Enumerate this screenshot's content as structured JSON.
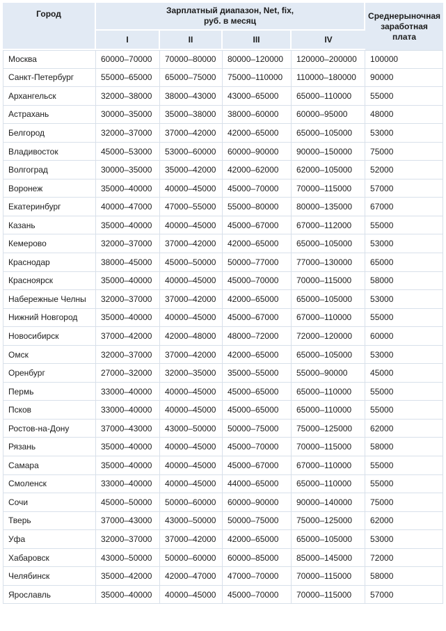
{
  "colors": {
    "header_bg": "#e2eaf4",
    "header_border": "#ffffff",
    "grid_line": "#d8e0ea",
    "text": "#1c1c1c",
    "page_bg": "#ffffff"
  },
  "table": {
    "header": {
      "city_label": "Город",
      "range_group_line1": "Зарплатный диапазон, Net, fix,",
      "range_group_line2": "руб. в месяц",
      "quartiles": [
        "I",
        "II",
        "III",
        "IV"
      ],
      "avg_label": "Среднерыночная заработная плата"
    },
    "rows": [
      {
        "city": "Москва",
        "ranges": [
          "60000–70000",
          "70000–80000",
          "80000–120000",
          "120000–200000"
        ],
        "avg": "100000"
      },
      {
        "city": "Санкт-Петербург",
        "ranges": [
          "55000–65000",
          "65000–75000",
          "75000–110000",
          "110000–180000"
        ],
        "avg": "90000"
      },
      {
        "city": "Архангельск",
        "ranges": [
          "32000–38000",
          "38000–43000",
          "43000–65000",
          "65000–110000"
        ],
        "avg": "55000"
      },
      {
        "city": "Астрахань",
        "ranges": [
          "30000–35000",
          "35000–38000",
          "38000–60000",
          "60000–95000"
        ],
        "avg": "48000"
      },
      {
        "city": "Белгород",
        "ranges": [
          "32000–37000",
          "37000–42000",
          "42000–65000",
          "65000–105000"
        ],
        "avg": "53000"
      },
      {
        "city": "Владивосток",
        "ranges": [
          "45000–53000",
          "53000–60000",
          "60000–90000",
          "90000–150000"
        ],
        "avg": "75000"
      },
      {
        "city": "Волгоград",
        "ranges": [
          "30000–35000",
          "35000–42000",
          "42000–62000",
          "62000–105000"
        ],
        "avg": "52000"
      },
      {
        "city": "Воронеж",
        "ranges": [
          "35000–40000",
          "40000–45000",
          "45000–70000",
          "70000–115000"
        ],
        "avg": "57000"
      },
      {
        "city": "Екатеринбург",
        "ranges": [
          "40000–47000",
          "47000–55000",
          "55000–80000",
          "80000–135000"
        ],
        "avg": "67000"
      },
      {
        "city": "Казань",
        "ranges": [
          "35000–40000",
          "40000–45000",
          "45000–67000",
          "67000–112000"
        ],
        "avg": "55000"
      },
      {
        "city": "Кемерово",
        "ranges": [
          "32000–37000",
          "37000–42000",
          "42000–65000",
          "65000–105000"
        ],
        "avg": "53000"
      },
      {
        "city": "Краснодар",
        "ranges": [
          "38000–45000",
          "45000–50000",
          "50000–77000",
          "77000–130000"
        ],
        "avg": "65000"
      },
      {
        "city": "Красноярск",
        "ranges": [
          "35000–40000",
          "40000–45000",
          "45000–70000",
          "70000–115000"
        ],
        "avg": "58000"
      },
      {
        "city": "Набережные Челны",
        "ranges": [
          "32000–37000",
          "37000–42000",
          "42000–65000",
          "65000–105000"
        ],
        "avg": "53000"
      },
      {
        "city": "Нижний Новгород",
        "ranges": [
          "35000–40000",
          "40000–45000",
          "45000–67000",
          "67000–110000"
        ],
        "avg": "55000"
      },
      {
        "city": "Новосибирск",
        "ranges": [
          "37000–42000",
          "42000–48000",
          "48000–72000",
          "72000–120000"
        ],
        "avg": "60000"
      },
      {
        "city": "Омск",
        "ranges": [
          "32000–37000",
          "37000–42000",
          "42000–65000",
          "65000–105000"
        ],
        "avg": "53000"
      },
      {
        "city": "Оренбург",
        "ranges": [
          "27000–32000",
          "32000–35000",
          "35000–55000",
          "55000–90000"
        ],
        "avg": "45000"
      },
      {
        "city": "Пермь",
        "ranges": [
          "33000–40000",
          "40000–45000",
          "45000–65000",
          "65000–110000"
        ],
        "avg": "55000"
      },
      {
        "city": "Псков",
        "ranges": [
          "33000–40000",
          "40000–45000",
          "45000–65000",
          "65000–110000"
        ],
        "avg": "55000"
      },
      {
        "city": "Ростов-на-Дону",
        "ranges": [
          "37000–43000",
          "43000–50000",
          "50000–75000",
          "75000–125000"
        ],
        "avg": "62000"
      },
      {
        "city": "Рязань",
        "ranges": [
          "35000–40000",
          "40000–45000",
          "45000–70000",
          "70000–115000"
        ],
        "avg": "58000"
      },
      {
        "city": "Самара",
        "ranges": [
          "35000–40000",
          "40000–45000",
          "45000–67000",
          "67000–110000"
        ],
        "avg": "55000"
      },
      {
        "city": "Смоленск",
        "ranges": [
          "33000–40000",
          "40000–45000",
          "44000–65000",
          "65000–110000"
        ],
        "avg": "55000"
      },
      {
        "city": "Сочи",
        "ranges": [
          "45000–50000",
          "50000–60000",
          "60000–90000",
          "90000–140000"
        ],
        "avg": "75000"
      },
      {
        "city": "Тверь",
        "ranges": [
          "37000–43000",
          "43000–50000",
          "50000–75000",
          "75000–125000"
        ],
        "avg": "62000"
      },
      {
        "city": "Уфа",
        "ranges": [
          "32000–37000",
          "37000–42000",
          "42000–65000",
          "65000–105000"
        ],
        "avg": "53000"
      },
      {
        "city": "Хабаровск",
        "ranges": [
          "43000–50000",
          "50000–60000",
          "60000–85000",
          "85000–145000"
        ],
        "avg": "72000"
      },
      {
        "city": "Челябинск",
        "ranges": [
          "35000–42000",
          "42000–47000",
          "47000–70000",
          "70000–115000"
        ],
        "avg": "58000"
      },
      {
        "city": "Ярославль",
        "ranges": [
          "35000–40000",
          "40000–45000",
          "45000–70000",
          "70000–115000"
        ],
        "avg": "57000"
      }
    ]
  }
}
